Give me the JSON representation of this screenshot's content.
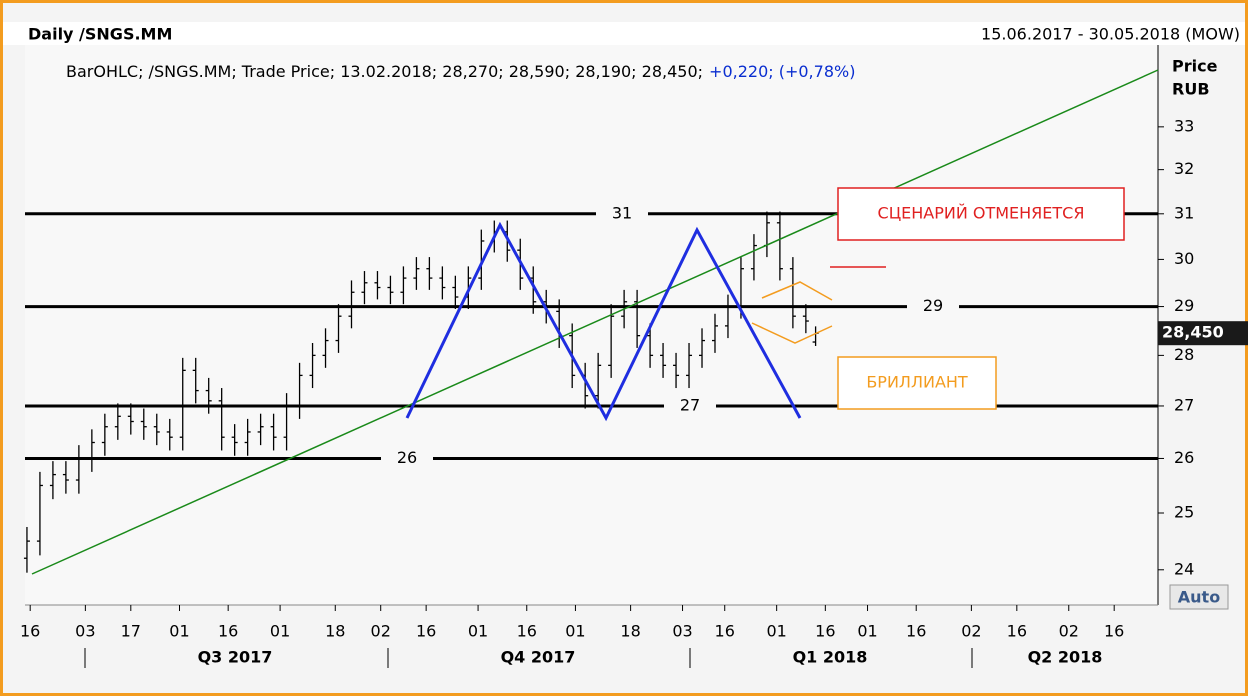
{
  "chart_data": {
    "type": "ohlc",
    "title": "Daily /SNGS.MM",
    "date_range": "15.06.2017 - 30.05.2018 (MOW)",
    "legend_text": "BarOHLC; /SNGS.MM; Trade Price; 13.02.2018; 28,270; 28,590; 28,190; 28,450;",
    "change_text": "+0,220; (+0,78%)",
    "y_label": "Price",
    "y_unit": "RUB",
    "auto_label": "Auto",
    "last_price": {
      "value": 28.45,
      "label": "28,450"
    },
    "log_scale": true,
    "color": "#000000",
    "x": [
      0,
      4,
      8,
      12,
      16,
      20,
      24,
      28,
      32,
      36,
      40,
      44,
      48,
      52,
      56,
      60,
      64,
      68,
      72,
      76,
      80,
      84,
      88,
      92,
      96,
      100,
      104,
      108,
      112,
      116,
      120,
      124,
      128,
      132,
      136,
      140,
      144,
      148,
      152,
      156,
      160,
      164,
      168,
      172,
      176,
      180,
      184,
      188,
      192,
      196,
      200,
      204,
      208,
      212,
      216,
      220,
      224,
      228,
      232,
      236,
      240,
      243
    ],
    "open": [
      24.2,
      24.5,
      25.5,
      25.7,
      25.6,
      26.0,
      26.3,
      26.6,
      26.8,
      26.7,
      26.6,
      26.5,
      26.4,
      27.7,
      27.3,
      27.1,
      26.4,
      26.3,
      26.5,
      26.6,
      26.4,
      27.0,
      27.6,
      28.0,
      28.3,
      28.8,
      29.3,
      29.5,
      29.4,
      29.3,
      29.6,
      29.8,
      29.6,
      29.4,
      29.2,
      29.6,
      30.4,
      30.6,
      30.2,
      29.6,
      29.1,
      28.9,
      28.4,
      27.6,
      27.2,
      27.8,
      28.8,
      29.1,
      28.4,
      28.0,
      27.8,
      27.6,
      28.0,
      28.3,
      28.6,
      29.0,
      29.8,
      30.3,
      30.8,
      29.8,
      28.8,
      28.27
    ],
    "high": [
      24.75,
      25.75,
      25.95,
      25.95,
      26.25,
      26.55,
      26.85,
      27.05,
      27.05,
      26.95,
      26.85,
      26.75,
      27.95,
      27.95,
      27.55,
      27.35,
      26.65,
      26.75,
      26.85,
      26.85,
      27.25,
      27.85,
      28.25,
      28.55,
      29.05,
      29.55,
      29.75,
      29.75,
      29.65,
      29.85,
      30.05,
      30.05,
      29.85,
      29.65,
      29.85,
      30.65,
      30.85,
      30.85,
      30.45,
      29.85,
      29.35,
      29.15,
      28.65,
      27.85,
      28.05,
      29.05,
      29.35,
      29.35,
      28.65,
      28.25,
      28.05,
      28.25,
      28.55,
      28.85,
      29.25,
      30.05,
      30.55,
      31.05,
      31.05,
      30.05,
      29.05,
      28.59
    ],
    "low": [
      23.95,
      24.25,
      25.25,
      25.35,
      25.35,
      25.75,
      26.05,
      26.35,
      26.45,
      26.35,
      26.25,
      26.15,
      26.15,
      27.05,
      26.85,
      26.15,
      26.05,
      26.05,
      26.25,
      26.15,
      26.15,
      26.75,
      27.35,
      27.75,
      28.05,
      28.55,
      29.05,
      29.15,
      29.05,
      29.05,
      29.35,
      29.35,
      29.15,
      28.95,
      28.95,
      29.35,
      30.15,
      29.95,
      29.35,
      28.85,
      28.65,
      28.15,
      27.35,
      26.95,
      26.95,
      27.55,
      28.55,
      28.15,
      27.75,
      27.55,
      27.35,
      27.35,
      27.75,
      28.05,
      28.35,
      28.75,
      29.55,
      30.05,
      29.55,
      28.55,
      28.45,
      28.19
    ],
    "close": [
      24.5,
      25.5,
      25.7,
      25.6,
      26.0,
      26.3,
      26.6,
      26.8,
      26.7,
      26.6,
      26.5,
      26.4,
      27.7,
      27.3,
      27.1,
      26.4,
      26.3,
      26.5,
      26.6,
      26.4,
      27.0,
      27.6,
      28.0,
      28.3,
      28.8,
      29.3,
      29.5,
      29.4,
      29.3,
      29.6,
      29.8,
      29.6,
      29.4,
      29.2,
      29.6,
      30.4,
      30.6,
      30.2,
      29.6,
      29.1,
      28.9,
      28.4,
      27.6,
      27.2,
      27.8,
      28.8,
      29.1,
      28.4,
      28.0,
      27.8,
      27.6,
      28.0,
      28.3,
      28.6,
      29.0,
      29.8,
      30.3,
      30.8,
      29.8,
      28.8,
      28.7,
      28.45
    ],
    "xlim": [
      -0.6,
      348.5
    ],
    "xticks": [
      {
        "value": 1,
        "label": "16"
      },
      {
        "value": 18,
        "label": "03"
      },
      {
        "value": 32,
        "label": "17"
      },
      {
        "value": 47,
        "label": "01"
      },
      {
        "value": 62,
        "label": "16"
      },
      {
        "value": 78,
        "label": "01"
      },
      {
        "value": 95,
        "label": "18"
      },
      {
        "value": 109,
        "label": "02"
      },
      {
        "value": 123,
        "label": "16"
      },
      {
        "value": 139,
        "label": "01"
      },
      {
        "value": 154,
        "label": "16"
      },
      {
        "value": 169,
        "label": "01"
      },
      {
        "value": 186,
        "label": "18"
      },
      {
        "value": 202,
        "label": "03"
      },
      {
        "value": 215,
        "label": "16"
      },
      {
        "value": 231,
        "label": "01"
      },
      {
        "value": 246,
        "label": "16"
      },
      {
        "value": 259,
        "label": "01"
      },
      {
        "value": 274,
        "label": "16"
      },
      {
        "value": 291,
        "label": "02"
      },
      {
        "value": 305,
        "label": "16"
      },
      {
        "value": 321,
        "label": "02"
      },
      {
        "value": 335,
        "label": "16"
      }
    ],
    "quarter_labels": [
      "Q3 2017",
      "Q4 2017",
      "Q1 2018",
      "Q2 2018"
    ],
    "ylim": [
      23.4,
      35
    ],
    "yticks": [
      24,
      25,
      26,
      27,
      28,
      29,
      30,
      31,
      32,
      33
    ],
    "levels": [
      31,
      29,
      27,
      26
    ],
    "annotations": [
      "СЦЕНАРИЙ ОТМЕНЯЕТСЯ",
      "БРИЛЛИАНТ"
    ]
  }
}
